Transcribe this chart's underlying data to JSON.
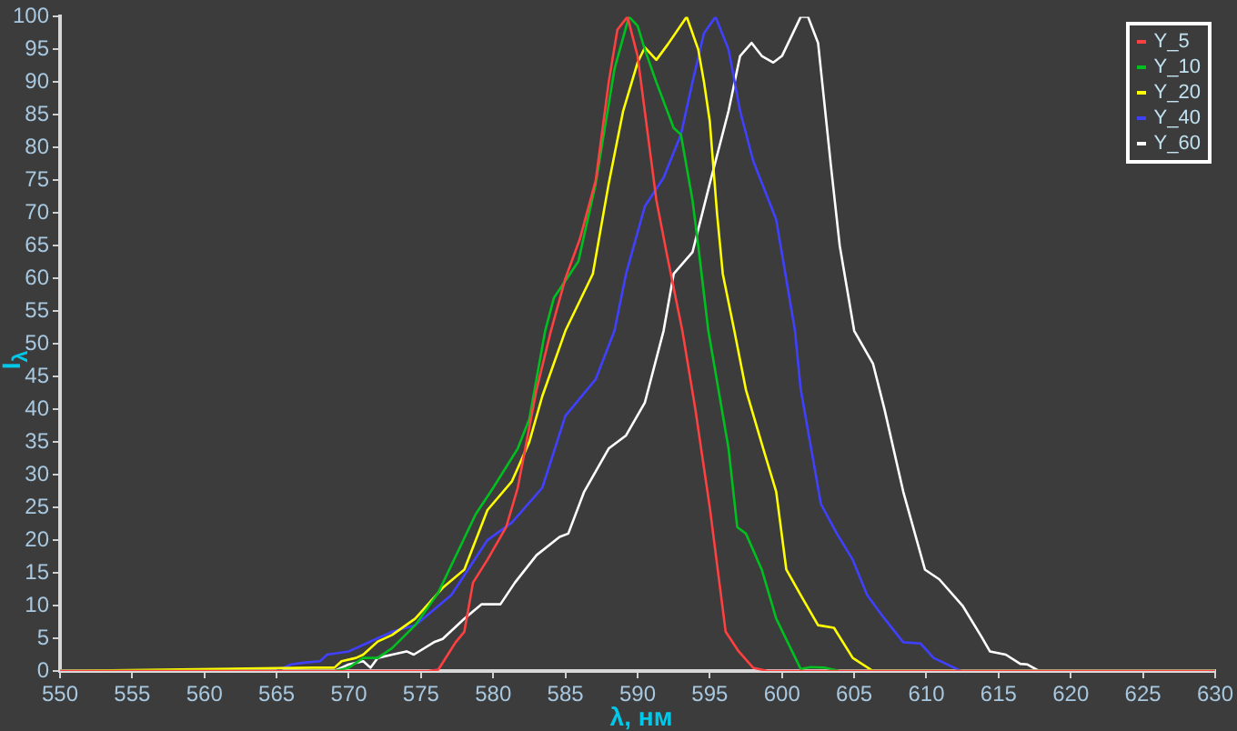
{
  "chart_data": {
    "type": "line",
    "xlabel": "λ, нм",
    "ylabel": "I$_{λ}$",
    "xlim": [
      550,
      630
    ],
    "ylim": [
      0,
      100
    ],
    "xticks": [
      550,
      555,
      560,
      565,
      570,
      575,
      580,
      585,
      590,
      595,
      600,
      605,
      610,
      615,
      620,
      625,
      630
    ],
    "yticks": [
      0,
      5,
      10,
      15,
      20,
      25,
      30,
      35,
      40,
      45,
      50,
      55,
      60,
      65,
      70,
      75,
      80,
      85,
      90,
      95,
      100
    ],
    "grid": false,
    "legend": "top right",
    "marker": "none",
    "line_style": "solid",
    "series": [
      {
        "name": "Y_5",
        "color": "#ff4040",
        "x": [
          550,
          575.5,
          576.2,
          577.4,
          578,
          578.6,
          579.6,
          580.9,
          581.7,
          583,
          584,
          585,
          586,
          587.1,
          588,
          588.6,
          589.3,
          590,
          591.3,
          592,
          593.1,
          594,
          595,
          596.1,
          597,
          598,
          599,
          630
        ],
        "values": [
          0,
          0,
          0.2,
          4.4,
          6,
          13.5,
          17,
          22,
          28,
          43,
          52,
          60,
          66,
          75,
          90,
          98,
          100,
          94,
          72,
          64,
          52,
          40,
          25,
          6,
          3,
          0.5,
          0,
          0
        ]
      },
      {
        "name": "Y_10",
        "color": "#00c020",
        "x": [
          550,
          569,
          570,
          571,
          572,
          573,
          574.6,
          576.2,
          578.8,
          580,
          581.7,
          582.5,
          583.6,
          584.2,
          585.9,
          587.1,
          588.4,
          589.4,
          590,
          590.5,
          591.3,
          592.5,
          593,
          593.8,
          594.2,
          594.9,
          596.3,
          596.9,
          597.5,
          598.6,
          599.6,
          601.3,
          602,
          603,
          604,
          630
        ],
        "values": [
          0,
          0,
          0.5,
          2,
          2,
          3.5,
          7,
          12,
          24,
          28,
          34,
          38.5,
          52,
          57,
          62.6,
          74.5,
          92,
          100,
          98.6,
          95,
          90,
          83,
          82,
          72,
          65,
          52,
          34,
          22,
          21,
          15.5,
          8,
          0.3,
          0.6,
          0.5,
          0,
          0
        ]
      },
      {
        "name": "Y_20",
        "color": "#ffff00",
        "x": [
          550,
          567.5,
          569,
          569.5,
          570.5,
          571,
          572,
          573,
          574.6,
          576.5,
          578,
          579.6,
          581.3,
          582.5,
          583.4,
          585,
          586.9,
          588,
          589,
          590,
          590.5,
          591.3,
          592.1,
          593.4,
          594.2,
          594.6,
          595,
          595.5,
          595.9,
          596.7,
          597.5,
          598.7,
          599.6,
          600.3,
          601.3,
          602.5,
          603.6,
          604.9,
          606.3,
          630
        ],
        "values": [
          0,
          0.5,
          0.5,
          1.5,
          2,
          2.5,
          4.5,
          5.5,
          8,
          12.7,
          15.5,
          24.6,
          29,
          35,
          42,
          52,
          60.7,
          74.5,
          85.6,
          93,
          95.3,
          93.4,
          95.8,
          100,
          95,
          90,
          84,
          70,
          60.7,
          52,
          43,
          34,
          27.4,
          15.5,
          11.6,
          7,
          6.6,
          2,
          0,
          0
        ]
      },
      {
        "name": "Y_40",
        "color": "#4040ff",
        "x": [
          550,
          565,
          566,
          567,
          568,
          568.5,
          570,
          571,
          572,
          573,
          574.6,
          577.1,
          579.6,
          581.3,
          583.4,
          585,
          587.1,
          588.4,
          589.2,
          590.5,
          591.8,
          593,
          593.8,
          594.6,
          595.4,
          596.3,
          597.1,
          598,
          599.6,
          600.9,
          601.3,
          602.7,
          603.8,
          604.9,
          605.9,
          607.1,
          608.4,
          609.6,
          610.5,
          612.4,
          630
        ],
        "values": [
          0,
          0,
          1,
          1.3,
          1.5,
          2.5,
          3,
          4,
          5,
          6,
          7,
          11.6,
          20,
          22.7,
          28,
          39,
          44.6,
          52,
          60.7,
          71,
          75.4,
          82,
          90,
          97.5,
          100,
          95,
          85.6,
          78,
          69,
          52,
          43,
          25.5,
          21,
          17,
          11.6,
          8,
          4.4,
          4.2,
          2,
          0,
          0
        ]
      },
      {
        "name": "Y_60",
        "color": "#ffffff",
        "x": [
          550,
          569,
          570,
          571,
          571.5,
          572,
          573,
          574,
          574.5,
          575.9,
          576.5,
          578,
          579.2,
          580.5,
          581.5,
          583,
          584.6,
          585.2,
          586.3,
          588,
          589.2,
          590.5,
          591.8,
          592.5,
          593.8,
          595,
          596.3,
          597.1,
          597.9,
          598.6,
          599.4,
          600,
          601.3,
          601.8,
          602.5,
          603.4,
          604,
          605,
          606.3,
          607.1,
          608.4,
          609.9,
          610.9,
          612.5,
          613.8,
          614.4,
          615.5,
          616.5,
          617,
          617.8,
          630
        ],
        "values": [
          0,
          0,
          1,
          1.5,
          0.5,
          2,
          2.5,
          3,
          2.5,
          4.4,
          4.9,
          8,
          10.2,
          10.2,
          13.5,
          17.7,
          20.5,
          21,
          27.4,
          34,
          36,
          41,
          52,
          60.7,
          64,
          74.5,
          85.6,
          94,
          96,
          94,
          93,
          94,
          100,
          100,
          96,
          77,
          65,
          52,
          47,
          40,
          27.4,
          15.5,
          14,
          10,
          5.3,
          3,
          2.5,
          1.1,
          1,
          0,
          0
        ]
      }
    ]
  }
}
